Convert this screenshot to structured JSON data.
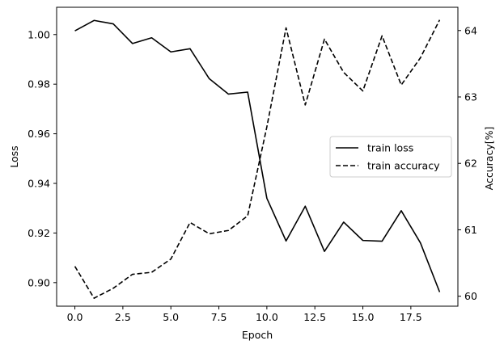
{
  "chart_data": {
    "type": "line",
    "xlabel": "Epoch",
    "ylabel_left": "Loss",
    "ylabel_right": "Accuracy[%]",
    "xlim": [
      -0.95,
      19.95
    ],
    "ylim_left": [
      0.8905,
      1.011
    ],
    "ylim_right": [
      59.85,
      64.35
    ],
    "xticks": [
      0.0,
      2.5,
      5.0,
      7.5,
      10.0,
      12.5,
      15.0,
      17.5
    ],
    "xtick_labels": [
      "0.0",
      "2.5",
      "5.0",
      "7.5",
      "10.0",
      "12.5",
      "15.0",
      "17.5"
    ],
    "yticks_left": [
      0.9,
      0.92,
      0.94,
      0.96,
      0.98,
      1.0
    ],
    "ytick_labels_left": [
      "0.90",
      "0.92",
      "0.94",
      "0.96",
      "0.98",
      "1.00"
    ],
    "yticks_right": [
      60,
      61,
      62,
      63,
      64
    ],
    "ytick_labels_right": [
      "60",
      "61",
      "62",
      "63",
      "64"
    ],
    "grid": false,
    "legend_position": "center-right",
    "series": [
      {
        "name": "train loss",
        "axis": "left",
        "style": "solid",
        "color": "#000000",
        "x": [
          0,
          1,
          2,
          3,
          4,
          5,
          6,
          7,
          8,
          9,
          10,
          11,
          12,
          13,
          14,
          15,
          16,
          17,
          18,
          19
        ],
        "values": [
          1.0015,
          1.0057,
          1.0043,
          0.9964,
          0.9987,
          0.993,
          0.9943,
          0.9822,
          0.976,
          0.9768,
          0.934,
          0.9168,
          0.9308,
          0.9126,
          0.9244,
          0.917,
          0.9167,
          0.929,
          0.916,
          0.8962
        ]
      },
      {
        "name": "train accuracy",
        "axis": "right",
        "style": "dashed",
        "color": "#000000",
        "x": [
          0,
          1,
          2,
          3,
          4,
          5,
          6,
          7,
          8,
          9,
          10,
          11,
          12,
          13,
          14,
          15,
          16,
          17,
          18,
          19
        ],
        "values": [
          60.45,
          59.97,
          60.12,
          60.33,
          60.36,
          60.56,
          61.11,
          60.94,
          60.99,
          61.21,
          62.55,
          64.04,
          62.88,
          63.87,
          63.37,
          63.09,
          63.92,
          63.18,
          63.59,
          64.16
        ]
      }
    ]
  }
}
